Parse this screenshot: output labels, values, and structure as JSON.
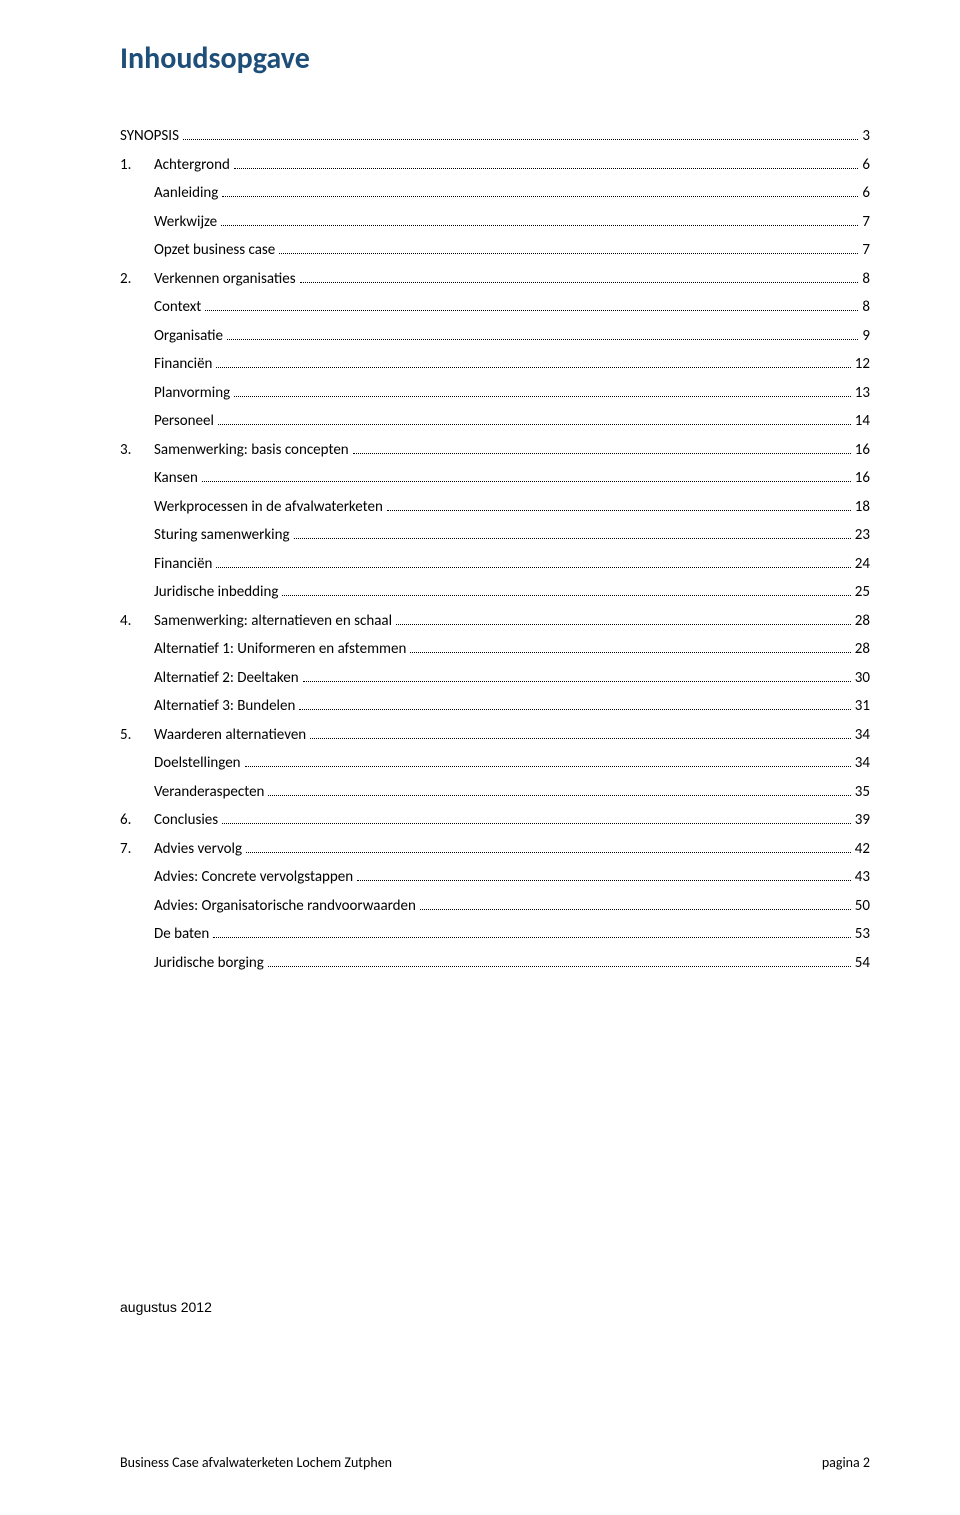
{
  "title": "Inhoudsopgave",
  "colors": {
    "title": "#1f4e79",
    "text": "#000000",
    "background": "#ffffff"
  },
  "fontsize": {
    "title_pt": 22,
    "body_pt": 11
  },
  "toc": [
    {
      "level": 0,
      "uc": true,
      "num": "",
      "label": "Synopsis",
      "page": 3
    },
    {
      "level": 1,
      "uc": false,
      "num": "1.",
      "label": "Achtergrond",
      "page": 6
    },
    {
      "level": 2,
      "uc": false,
      "num": "",
      "label": "Aanleiding",
      "page": 6
    },
    {
      "level": 2,
      "uc": false,
      "num": "",
      "label": "Werkwijze",
      "page": 7
    },
    {
      "level": 2,
      "uc": false,
      "num": "",
      "label": "Opzet business case",
      "page": 7
    },
    {
      "level": 1,
      "uc": false,
      "num": "2.",
      "label": "Verkennen organisaties",
      "page": 8
    },
    {
      "level": 2,
      "uc": false,
      "num": "",
      "label": "Context",
      "page": 8
    },
    {
      "level": 2,
      "uc": false,
      "num": "",
      "label": "Organisatie",
      "page": 9
    },
    {
      "level": 2,
      "uc": false,
      "num": "",
      "label": "Financiën",
      "page": 12
    },
    {
      "level": 2,
      "uc": false,
      "num": "",
      "label": "Planvorming",
      "page": 13
    },
    {
      "level": 2,
      "uc": false,
      "num": "",
      "label": "Personeel",
      "page": 14
    },
    {
      "level": 1,
      "uc": false,
      "num": "3.",
      "label": "Samenwerking: basis concepten",
      "page": 16
    },
    {
      "level": 2,
      "uc": false,
      "num": "",
      "label": "Kansen",
      "page": 16
    },
    {
      "level": 2,
      "uc": false,
      "num": "",
      "label": "Werkprocessen in de afvalwaterketen",
      "page": 18
    },
    {
      "level": 2,
      "uc": false,
      "num": "",
      "label": "Sturing samenwerking",
      "page": 23
    },
    {
      "level": 2,
      "uc": false,
      "num": "",
      "label": "Financiën",
      "page": 24
    },
    {
      "level": 2,
      "uc": false,
      "num": "",
      "label": "Juridische inbedding",
      "page": 25
    },
    {
      "level": 1,
      "uc": false,
      "num": "4.",
      "label": "Samenwerking: alternatieven en schaal",
      "page": 28
    },
    {
      "level": 2,
      "uc": false,
      "num": "",
      "label": "Alternatief 1: Uniformeren en afstemmen",
      "page": 28
    },
    {
      "level": 2,
      "uc": false,
      "num": "",
      "label": "Alternatief 2: Deeltaken",
      "page": 30
    },
    {
      "level": 2,
      "uc": false,
      "num": "",
      "label": "Alternatief 3: Bundelen",
      "page": 31
    },
    {
      "level": 1,
      "uc": false,
      "num": "5.",
      "label": "Waarderen alternatieven",
      "page": 34
    },
    {
      "level": 2,
      "uc": false,
      "num": "",
      "label": "Doelstellingen",
      "page": 34
    },
    {
      "level": 2,
      "uc": false,
      "num": "",
      "label": "Veranderaspecten",
      "page": 35
    },
    {
      "level": 1,
      "uc": false,
      "num": "6.",
      "label": "Conclusies",
      "page": 39
    },
    {
      "level": 1,
      "uc": false,
      "num": "7.",
      "label": "Advies vervolg",
      "page": 42
    },
    {
      "level": 2,
      "uc": false,
      "num": "",
      "label": "Advies: Concrete vervolgstappen",
      "page": 43
    },
    {
      "level": 2,
      "uc": false,
      "num": "",
      "label": "Advies: Organisatorische randvoorwaarden",
      "page": 50
    },
    {
      "level": 2,
      "uc": false,
      "num": "",
      "label": "De baten",
      "page": 53
    },
    {
      "level": 2,
      "uc": false,
      "num": "",
      "label": "Juridische borging",
      "page": 54
    }
  ],
  "date_note": "augustus 2012",
  "footer": {
    "left": "Business Case afvalwaterketen Lochem Zutphen",
    "right": "pagina 2"
  }
}
